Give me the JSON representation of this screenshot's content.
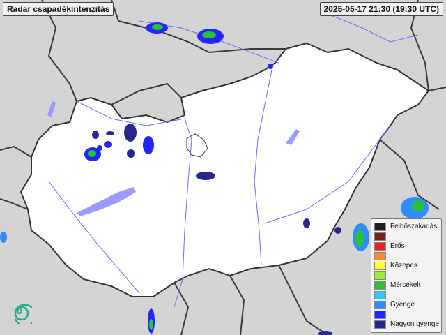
{
  "title": "Radar csapadékintenzitás",
  "timestamp": "2025-05-17 21:30 (19:30 UTC)",
  "legend": {
    "items": [
      {
        "label": "Felhőszakadás",
        "color": "#1e1e1e"
      },
      {
        "label": "",
        "color": "#7a1f1f"
      },
      {
        "label": "Erős",
        "color": "#ee2222"
      },
      {
        "label": "",
        "color": "#ff8c22"
      },
      {
        "label": "Közepes",
        "color": "#ffff2a"
      },
      {
        "label": "",
        "color": "#99f030"
      },
      {
        "label": "Mérsékelt",
        "color": "#2cc032"
      },
      {
        "label": "",
        "color": "#2ec8ff"
      },
      {
        "label": "Gyenge",
        "color": "#2e8cff"
      },
      {
        "label": "",
        "color": "#2424ff"
      },
      {
        "label": "Nagyon gyenge",
        "color": "#28288c"
      }
    ]
  },
  "colors": {
    "country_fill": "#ffffff",
    "background": "#d4d4d4",
    "rivers": "#6a6aff",
    "borders": "#333333"
  }
}
